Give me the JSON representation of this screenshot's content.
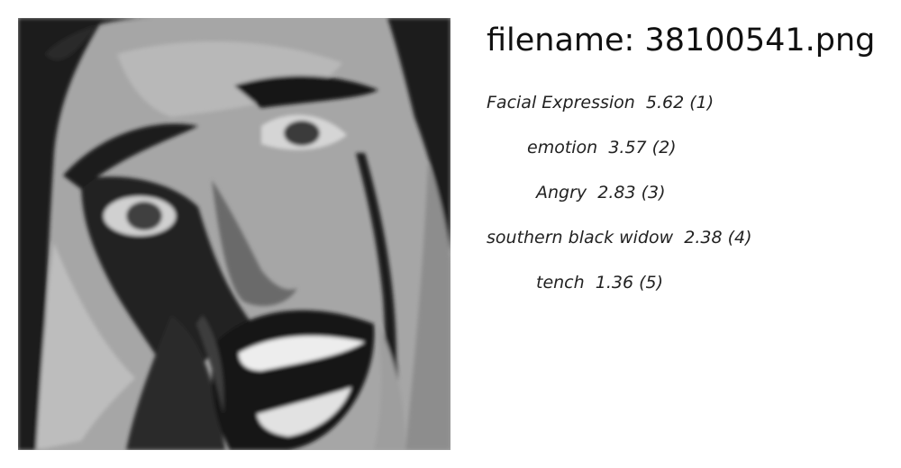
{
  "filename_line": "filename: 38100541.png",
  "predictions": [
    {
      "label": "Facial Expression",
      "score": "5.62",
      "rank": "(1)"
    },
    {
      "label": "emotion",
      "score": "3.57",
      "rank": "(2)"
    },
    {
      "label": "Angry",
      "score": "2.83",
      "rank": "(3)"
    },
    {
      "label": "southern black widow",
      "score": "2.38",
      "rank": "(4)"
    },
    {
      "label": "tench",
      "score": "1.36",
      "rank": "(5)"
    }
  ]
}
